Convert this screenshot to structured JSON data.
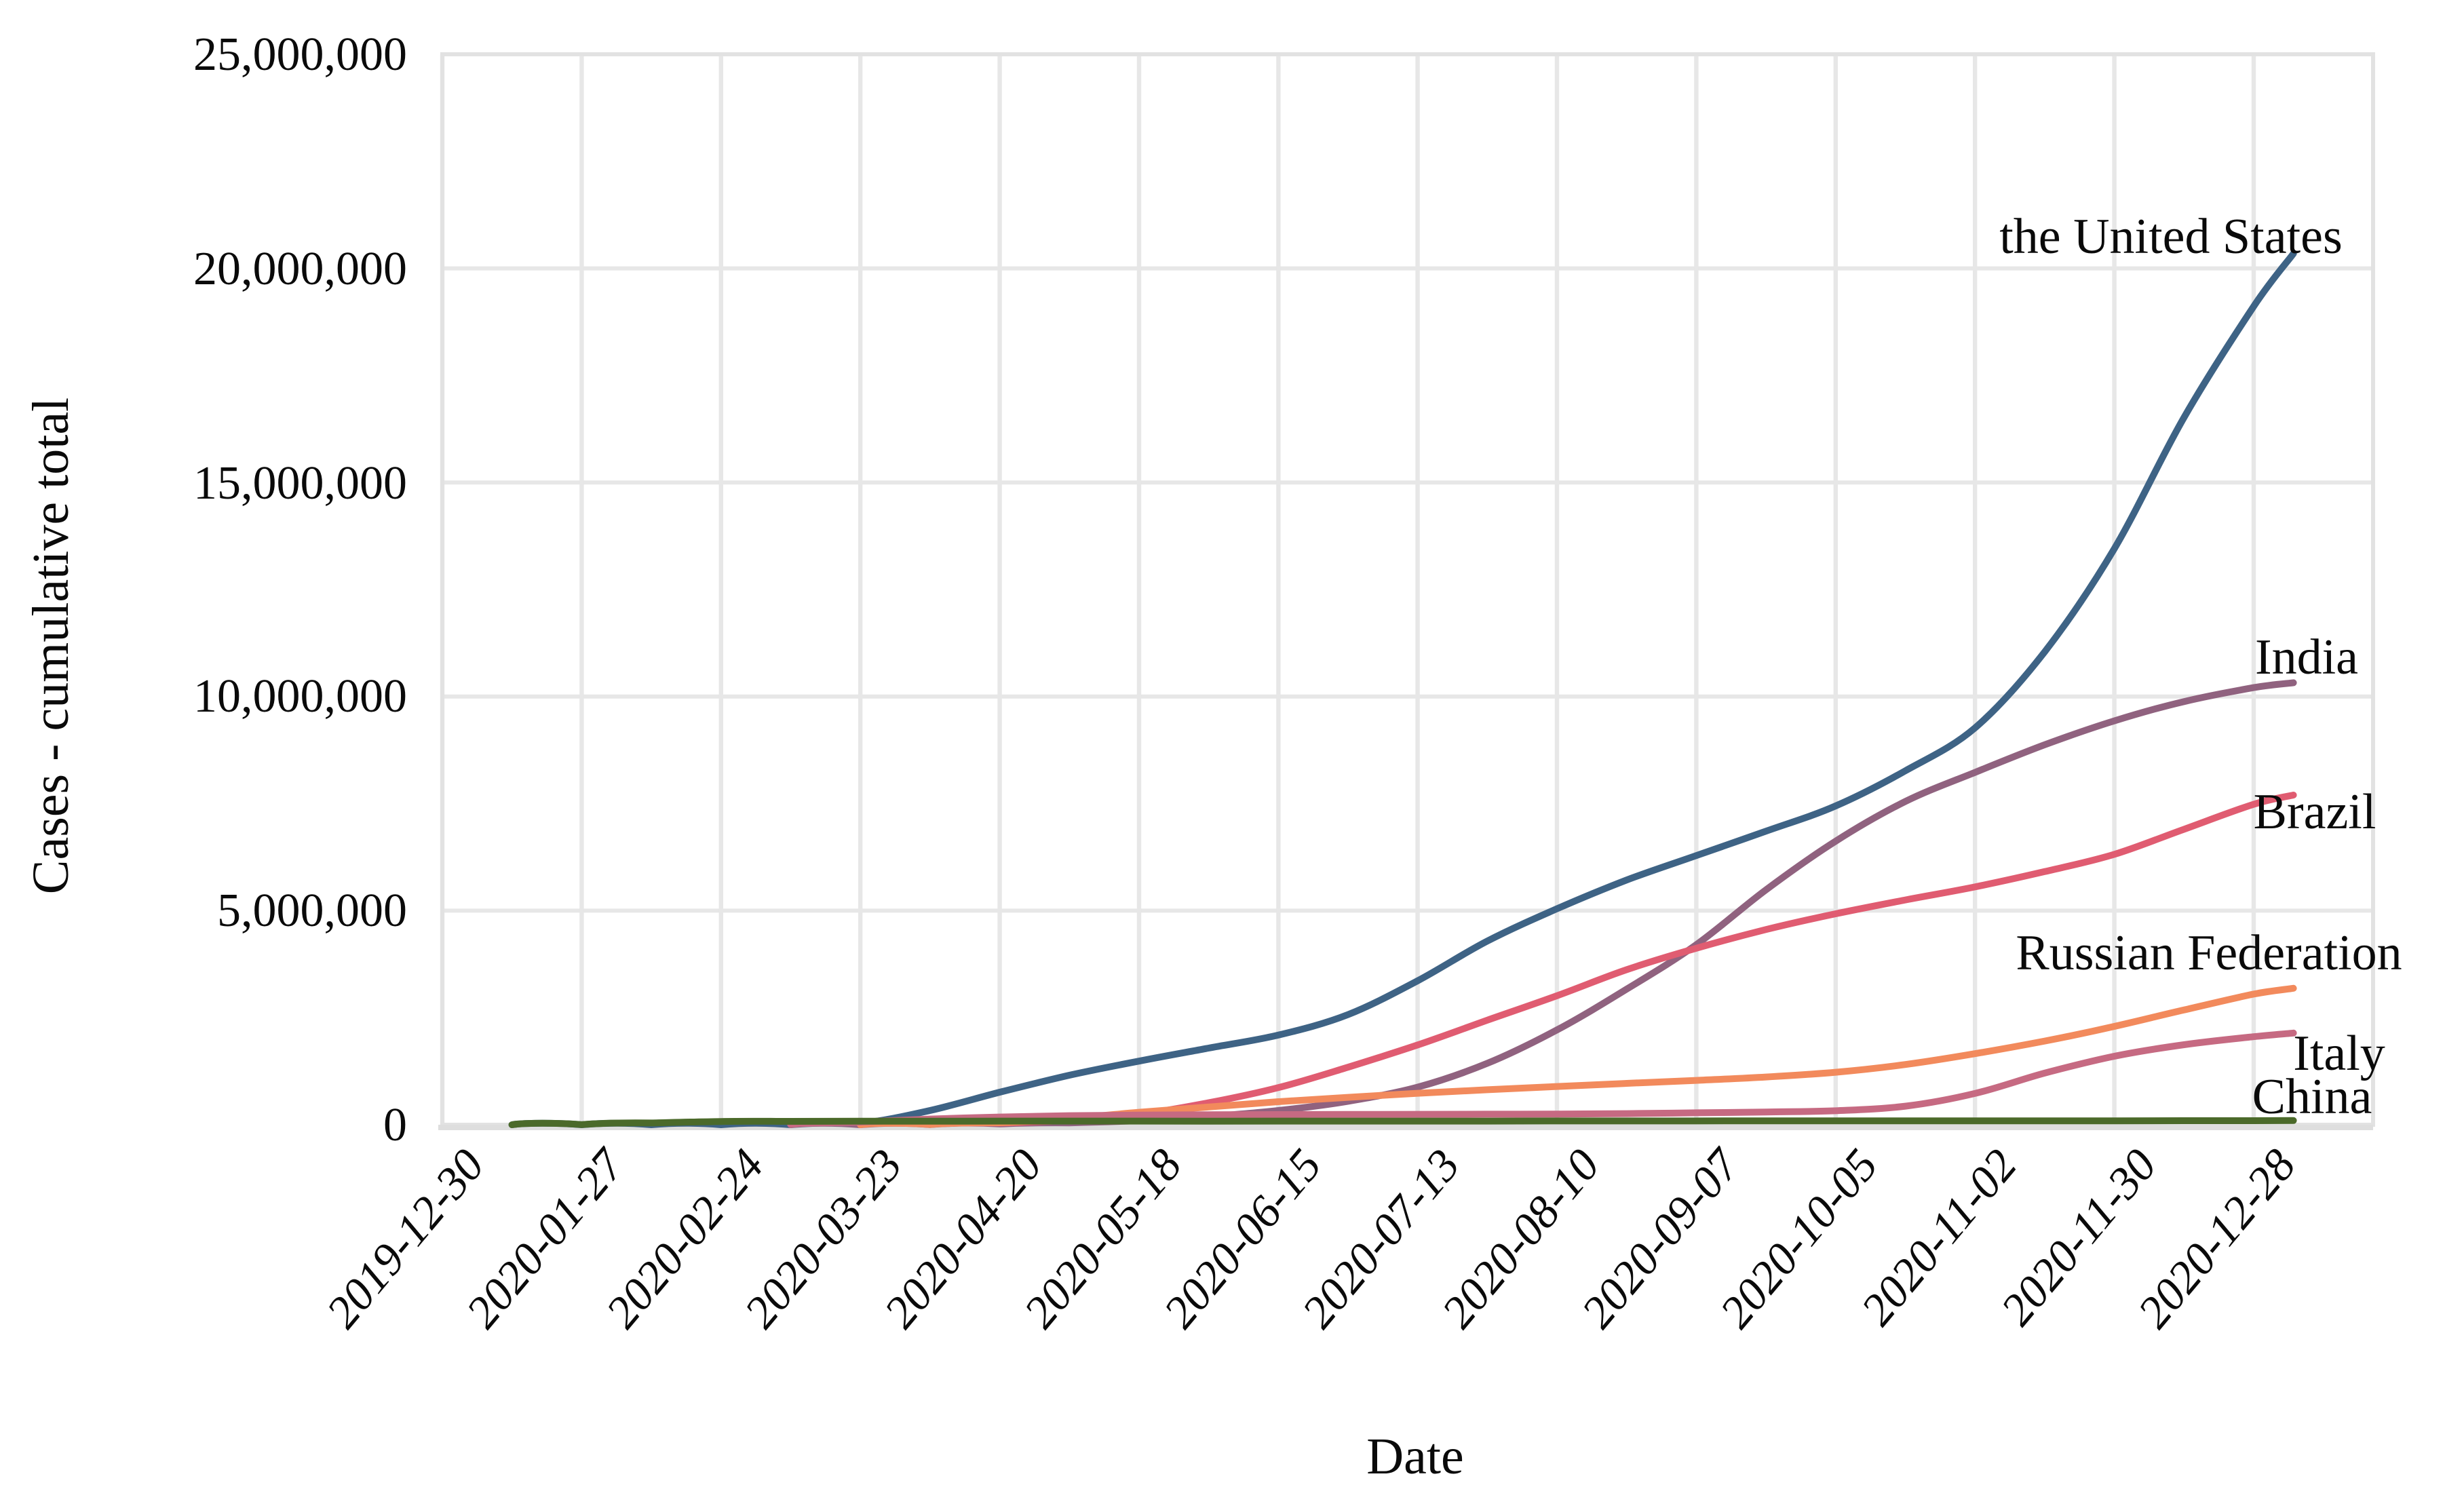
{
  "chart": {
    "x_axis_label": "Date",
    "y_axis_label": "Cases - cumulative total"
  },
  "chart_data": {
    "type": "line",
    "title": "",
    "xlabel": "Date",
    "ylabel": "Cases - cumulative total",
    "grid": true,
    "grid_color": "#e7e7e7",
    "panel_border_color": "#e2e2e2",
    "background": "#ffffff",
    "legend_position": "labels-at-line-ends",
    "ylim": [
      0,
      25000000
    ],
    "y_ticks": [
      0,
      5000000,
      10000000,
      15000000,
      20000000,
      25000000
    ],
    "y_tick_labels": [
      "0",
      "5,000,000",
      "10,000,000",
      "15,000,000",
      "20,000,000",
      "25,000,000"
    ],
    "x_tick_labels": [
      "2019-12-30",
      "2020-01-27",
      "2020-02-24",
      "2020-03-23",
      "2020-04-20",
      "2020-05-18",
      "2020-06-15",
      "2020-07-13",
      "2020-08-10",
      "2020-09-07",
      "2020-10-05",
      "2020-11-02",
      "2020-11-30",
      "2020-12-28"
    ],
    "x_tick_interval_days": 28,
    "x_unit": "days since first tick (2019-12-30)",
    "series": [
      {
        "name": "the United States",
        "color": "#3e6385",
        "points": [
          [
            14,
            1
          ],
          [
            28,
            5
          ],
          [
            42,
            13
          ],
          [
            56,
            51
          ],
          [
            70,
            605
          ],
          [
            84,
            33276
          ],
          [
            98,
            333811
          ],
          [
            112,
            759086
          ],
          [
            126,
            1154985
          ],
          [
            140,
            1486757
          ],
          [
            154,
            1790172
          ],
          [
            168,
            2094069
          ],
          [
            182,
            2573393
          ],
          [
            196,
            3363056
          ],
          [
            210,
            4290263
          ],
          [
            224,
            5044864
          ],
          [
            238,
            5715567
          ],
          [
            252,
            6287362
          ],
          [
            266,
            6856884
          ],
          [
            280,
            7444652
          ],
          [
            294,
            8265536
          ],
          [
            308,
            9268818
          ],
          [
            322,
            11047064
          ],
          [
            336,
            13454254
          ],
          [
            350,
            16519530
          ],
          [
            364,
            19111443
          ],
          [
            372,
            20346372
          ]
        ]
      },
      {
        "name": "India",
        "color": "#90627f",
        "points": [
          [
            70,
            43
          ],
          [
            84,
            471
          ],
          [
            98,
            4281
          ],
          [
            112,
            17656
          ],
          [
            126,
            42836
          ],
          [
            140,
            96169
          ],
          [
            154,
            190535
          ],
          [
            168,
            332424
          ],
          [
            182,
            548318
          ],
          [
            196,
            878254
          ],
          [
            210,
            1435453
          ],
          [
            224,
            2215074
          ],
          [
            238,
            3167323
          ],
          [
            252,
            4204613
          ],
          [
            266,
            5487580
          ],
          [
            280,
            6623815
          ],
          [
            294,
            7550273
          ],
          [
            308,
            8229313
          ],
          [
            322,
            8874290
          ],
          [
            336,
            9431691
          ],
          [
            350,
            9884100
          ],
          [
            364,
            10207871
          ],
          [
            372,
            10323965
          ]
        ]
      },
      {
        "name": "Brazil",
        "color": "#e05c71",
        "points": [
          [
            84,
            1891
          ],
          [
            98,
            11130
          ],
          [
            112,
            40581
          ],
          [
            126,
            107780
          ],
          [
            140,
            241080
          ],
          [
            154,
            514849
          ],
          [
            168,
            867624
          ],
          [
            182,
            1344143
          ],
          [
            196,
            1864681
          ],
          [
            210,
            2442375
          ],
          [
            224,
            3012412
          ],
          [
            238,
            3622861
          ],
          [
            252,
            4123000
          ],
          [
            266,
            4558040
          ],
          [
            280,
            4927235
          ],
          [
            294,
            5250727
          ],
          [
            308,
            5554206
          ],
          [
            322,
            5911758
          ],
          [
            336,
            6314740
          ],
          [
            350,
            6901952
          ],
          [
            364,
            7484285
          ],
          [
            372,
            7700578
          ]
        ]
      },
      {
        "name": "Russian Federation",
        "color": "#f28a5c",
        "points": [
          [
            84,
            438
          ],
          [
            98,
            6343
          ],
          [
            112,
            47121
          ],
          [
            126,
            145268
          ],
          [
            140,
            290678
          ],
          [
            154,
            414878
          ],
          [
            168,
            537210
          ],
          [
            182,
            641156
          ],
          [
            196,
            733699
          ],
          [
            210,
            816680
          ],
          [
            224,
            892654
          ],
          [
            238,
            966189
          ],
          [
            252,
            1035789
          ],
          [
            266,
            1115810
          ],
          [
            280,
            1225889
          ],
          [
            294,
            1406667
          ],
          [
            308,
            1661096
          ],
          [
            322,
            1954912
          ],
          [
            336,
            2295654
          ],
          [
            350,
            2681256
          ],
          [
            364,
            3050248
          ],
          [
            372,
            3186336
          ]
        ]
      },
      {
        "name": "Italy",
        "color": "#c66a82",
        "points": [
          [
            70,
            7375
          ],
          [
            84,
            63927
          ],
          [
            98,
            132547
          ],
          [
            112,
            181228
          ],
          [
            126,
            211938
          ],
          [
            140,
            225435
          ],
          [
            154,
            233197
          ],
          [
            168,
            237290
          ],
          [
            182,
            240436
          ],
          [
            196,
            243230
          ],
          [
            210,
            246286
          ],
          [
            224,
            250825
          ],
          [
            238,
            259345
          ],
          [
            252,
            277634
          ],
          [
            266,
            298156
          ],
          [
            280,
            327586
          ],
          [
            294,
            434449
          ],
          [
            308,
            731588
          ],
          [
            322,
            1205881
          ],
          [
            336,
            1601554
          ],
          [
            350,
            1870576
          ],
          [
            364,
            2056277
          ],
          [
            372,
            2141201
          ]
        ]
      },
      {
        "name": "China",
        "color": "#4b6a2a",
        "points": [
          [
            14,
            41
          ],
          [
            28,
            2798
          ],
          [
            42,
            40235
          ],
          [
            56,
            77241
          ],
          [
            70,
            80735
          ],
          [
            84,
            81601
          ],
          [
            98,
            83305
          ],
          [
            112,
            84237
          ],
          [
            126,
            84404
          ],
          [
            140,
            84054
          ],
          [
            154,
            83017
          ],
          [
            168,
            84785
          ],
          [
            182,
            85420
          ],
          [
            196,
            85623
          ],
          [
            210,
            86811
          ],
          [
            224,
            88611
          ],
          [
            238,
            89695
          ],
          [
            252,
            90087
          ],
          [
            266,
            91129
          ],
          [
            280,
            91272
          ],
          [
            294,
            91652
          ],
          [
            308,
            91841
          ],
          [
            322,
            92510
          ],
          [
            336,
            93392
          ],
          [
            350,
            94728
          ],
          [
            364,
            96335
          ],
          [
            372,
            97448
          ]
        ]
      }
    ]
  }
}
